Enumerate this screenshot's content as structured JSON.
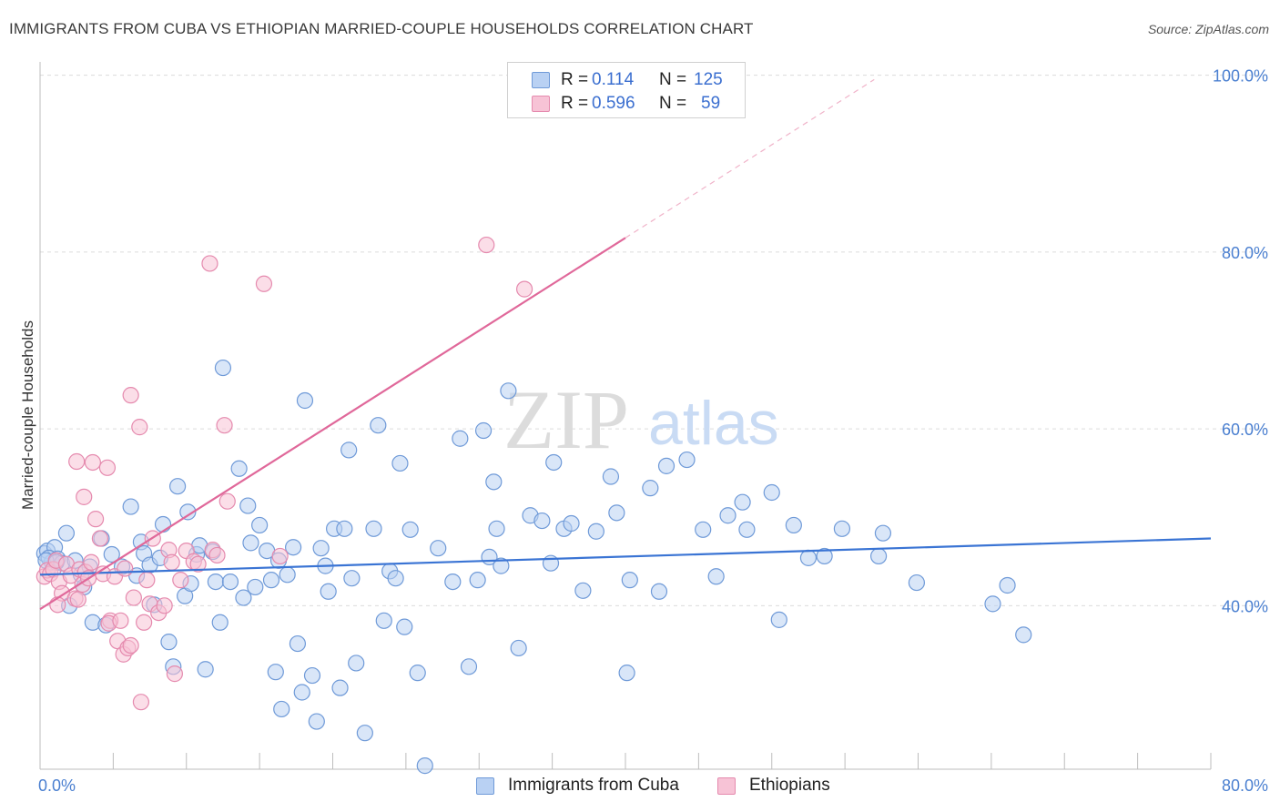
{
  "header": {
    "title": "IMMIGRANTS FROM CUBA VS ETHIOPIAN MARRIED-COUPLE HOUSEHOLDS CORRELATION CHART",
    "source": "Source: ZipAtlas.com"
  },
  "colors": {
    "cuba": "#3a74d4",
    "cuba_fill": "#b9d1f3",
    "ethiopia": "#e0689a",
    "ethiopia_fill": "#f7c3d6",
    "axis_label": "#4a7fd0"
  },
  "legend": {
    "rows": [
      {
        "r_label": "R =",
        "r_value": "0.114",
        "n_label": "N =",
        "n_value": "125"
      },
      {
        "r_label": "R =",
        "r_value": "0.596",
        "n_label": "N =",
        "n_value": "59"
      }
    ]
  },
  "bottom_legend": {
    "cuba": "Immigrants from Cuba",
    "ethiopia": "Ethiopians"
  },
  "watermark": {
    "zip": "ZIP",
    "atlas": "atlas"
  },
  "chart_data": {
    "type": "scatter",
    "title": "IMMIGRANTS FROM CUBA VS ETHIOPIAN MARRIED-COUPLE HOUSEHOLDS CORRELATION CHART",
    "xlabel": "",
    "ylabel": "Married-couple Households",
    "xlim": [
      0,
      80
    ],
    "ylim": [
      21.5,
      101.5
    ],
    "x_tick_labels": [
      "0.0%",
      "80.0%"
    ],
    "y_tick_values": [
      40,
      60,
      80,
      100
    ],
    "y_tick_labels": [
      "40.0%",
      "60.0%",
      "80.0%",
      "100.0%"
    ],
    "grid": "horizontal dashed",
    "series": [
      {
        "name": "Immigrants from Cuba",
        "r": 0.114,
        "n": 125,
        "trend": {
          "x0": 0,
          "y0": 43.5,
          "x1": 80,
          "y1": 47.6
        },
        "points": [
          [
            0.3,
            45.9
          ],
          [
            0.5,
            46.2
          ],
          [
            0.8,
            44.9
          ],
          [
            1.0,
            46.6
          ],
          [
            0.6,
            45.4
          ],
          [
            1.2,
            45.3
          ],
          [
            1.5,
            44.8
          ],
          [
            0.4,
            45.1
          ],
          [
            1.8,
            48.2
          ],
          [
            1.1,
            44.9
          ],
          [
            2.0,
            40.0
          ],
          [
            2.4,
            45.1
          ],
          [
            2.8,
            43.5
          ],
          [
            3.0,
            42.1
          ],
          [
            3.4,
            44.4
          ],
          [
            3.6,
            38.1
          ],
          [
            4.2,
            47.6
          ],
          [
            4.5,
            37.8
          ],
          [
            4.9,
            45.8
          ],
          [
            5.6,
            44.4
          ],
          [
            6.2,
            51.2
          ],
          [
            6.6,
            43.4
          ],
          [
            6.9,
            47.2
          ],
          [
            7.1,
            45.9
          ],
          [
            7.5,
            44.6
          ],
          [
            7.8,
            40.1
          ],
          [
            8.2,
            45.4
          ],
          [
            8.4,
            49.2
          ],
          [
            8.8,
            35.9
          ],
          [
            9.1,
            33.1
          ],
          [
            9.4,
            53.5
          ],
          [
            9.9,
            41.1
          ],
          [
            10.1,
            50.6
          ],
          [
            10.3,
            42.5
          ],
          [
            10.7,
            45.8
          ],
          [
            10.9,
            46.8
          ],
          [
            11.3,
            32.8
          ],
          [
            11.8,
            46.1
          ],
          [
            12.0,
            42.7
          ],
          [
            12.3,
            38.1
          ],
          [
            12.5,
            66.9
          ],
          [
            13.0,
            42.7
          ],
          [
            13.6,
            55.5
          ],
          [
            13.9,
            40.9
          ],
          [
            14.2,
            51.3
          ],
          [
            14.4,
            47.1
          ],
          [
            14.7,
            42.1
          ],
          [
            15.0,
            49.1
          ],
          [
            15.5,
            46.2
          ],
          [
            15.8,
            42.9
          ],
          [
            16.1,
            32.5
          ],
          [
            16.3,
            45.1
          ],
          [
            16.5,
            28.3
          ],
          [
            16.9,
            43.5
          ],
          [
            17.3,
            46.6
          ],
          [
            17.6,
            35.7
          ],
          [
            17.9,
            30.2
          ],
          [
            18.1,
            63.2
          ],
          [
            18.6,
            32.1
          ],
          [
            18.9,
            26.9
          ],
          [
            19.2,
            46.5
          ],
          [
            19.5,
            44.5
          ],
          [
            19.7,
            41.6
          ],
          [
            20.1,
            48.7
          ],
          [
            20.5,
            30.7
          ],
          [
            20.8,
            48.7
          ],
          [
            21.1,
            57.6
          ],
          [
            21.3,
            43.1
          ],
          [
            21.6,
            33.5
          ],
          [
            22.2,
            25.6
          ],
          [
            22.8,
            48.7
          ],
          [
            23.1,
            60.4
          ],
          [
            23.5,
            38.3
          ],
          [
            23.9,
            43.9
          ],
          [
            24.3,
            43.1
          ],
          [
            24.6,
            56.1
          ],
          [
            24.9,
            37.6
          ],
          [
            25.3,
            48.6
          ],
          [
            25.8,
            32.4
          ],
          [
            26.3,
            21.9
          ],
          [
            27.2,
            46.5
          ],
          [
            28.2,
            42.7
          ],
          [
            28.7,
            58.9
          ],
          [
            29.3,
            33.1
          ],
          [
            29.9,
            42.9
          ],
          [
            30.3,
            59.8
          ],
          [
            30.7,
            45.5
          ],
          [
            31.0,
            54.0
          ],
          [
            31.2,
            48.7
          ],
          [
            31.5,
            44.5
          ],
          [
            32.0,
            64.3
          ],
          [
            32.7,
            35.2
          ],
          [
            33.5,
            50.2
          ],
          [
            34.3,
            49.6
          ],
          [
            34.9,
            44.8
          ],
          [
            35.1,
            56.2
          ],
          [
            35.8,
            48.7
          ],
          [
            36.3,
            49.3
          ],
          [
            37.1,
            41.7
          ],
          [
            38.0,
            48.4
          ],
          [
            39.0,
            54.6
          ],
          [
            39.4,
            50.5
          ],
          [
            40.1,
            32.4
          ],
          [
            40.3,
            42.9
          ],
          [
            41.7,
            53.3
          ],
          [
            42.3,
            41.6
          ],
          [
            42.8,
            55.8
          ],
          [
            44.2,
            56.5
          ],
          [
            45.3,
            48.6
          ],
          [
            46.2,
            43.3
          ],
          [
            47.0,
            50.2
          ],
          [
            48.0,
            51.7
          ],
          [
            48.3,
            48.6
          ],
          [
            50.0,
            52.8
          ],
          [
            50.5,
            38.4
          ],
          [
            51.5,
            49.1
          ],
          [
            52.5,
            45.4
          ],
          [
            53.6,
            45.6
          ],
          [
            54.8,
            48.7
          ],
          [
            57.3,
            45.6
          ],
          [
            57.6,
            48.2
          ],
          [
            59.9,
            42.6
          ],
          [
            65.1,
            40.2
          ],
          [
            66.1,
            42.3
          ],
          [
            67.2,
            36.7
          ]
        ]
      },
      {
        "name": "Ethiopians",
        "r": 0.596,
        "n": 59,
        "trend": {
          "x0": 0,
          "y0": 39.6,
          "x1": 40,
          "y1": 81.6,
          "dashed_to": {
            "x": 57,
            "y": 99.5
          }
        },
        "points": [
          [
            0.3,
            43.3
          ],
          [
            0.5,
            44.0
          ],
          [
            0.7,
            43.6
          ],
          [
            0.9,
            44.1
          ],
          [
            1.1,
            45.1
          ],
          [
            1.3,
            42.7
          ],
          [
            1.5,
            41.4
          ],
          [
            1.2,
            40.1
          ],
          [
            1.8,
            44.7
          ],
          [
            2.1,
            43.4
          ],
          [
            2.4,
            40.8
          ],
          [
            2.6,
            40.7
          ],
          [
            2.7,
            44.1
          ],
          [
            2.9,
            42.4
          ],
          [
            3.1,
            43.8
          ],
          [
            3.3,
            43.1
          ],
          [
            3.5,
            44.9
          ],
          [
            2.5,
            56.3
          ],
          [
            3.6,
            56.2
          ],
          [
            3.0,
            52.3
          ],
          [
            3.8,
            49.8
          ],
          [
            4.1,
            47.6
          ],
          [
            4.3,
            43.6
          ],
          [
            4.6,
            55.6
          ],
          [
            4.8,
            38.3
          ],
          [
            4.7,
            38.0
          ],
          [
            5.1,
            43.3
          ],
          [
            5.3,
            36.0
          ],
          [
            5.5,
            38.3
          ],
          [
            5.8,
            44.2
          ],
          [
            5.7,
            34.5
          ],
          [
            6.0,
            35.2
          ],
          [
            6.2,
            35.5
          ],
          [
            6.4,
            40.9
          ],
          [
            6.8,
            60.2
          ],
          [
            6.9,
            29.1
          ],
          [
            7.1,
            38.1
          ],
          [
            7.3,
            42.9
          ],
          [
            7.5,
            40.2
          ],
          [
            7.7,
            47.6
          ],
          [
            8.1,
            39.2
          ],
          [
            8.5,
            40.0
          ],
          [
            8.8,
            46.3
          ],
          [
            9.0,
            44.9
          ],
          [
            9.2,
            32.3
          ],
          [
            9.6,
            42.9
          ],
          [
            10.0,
            46.2
          ],
          [
            10.5,
            45.0
          ],
          [
            10.8,
            44.7
          ],
          [
            11.8,
            46.3
          ],
          [
            11.6,
            78.7
          ],
          [
            12.1,
            45.7
          ],
          [
            12.6,
            60.4
          ],
          [
            12.8,
            51.8
          ],
          [
            15.3,
            76.4
          ],
          [
            16.4,
            45.6
          ],
          [
            6.2,
            63.8
          ],
          [
            30.5,
            80.8
          ],
          [
            33.1,
            75.8
          ]
        ]
      }
    ]
  }
}
